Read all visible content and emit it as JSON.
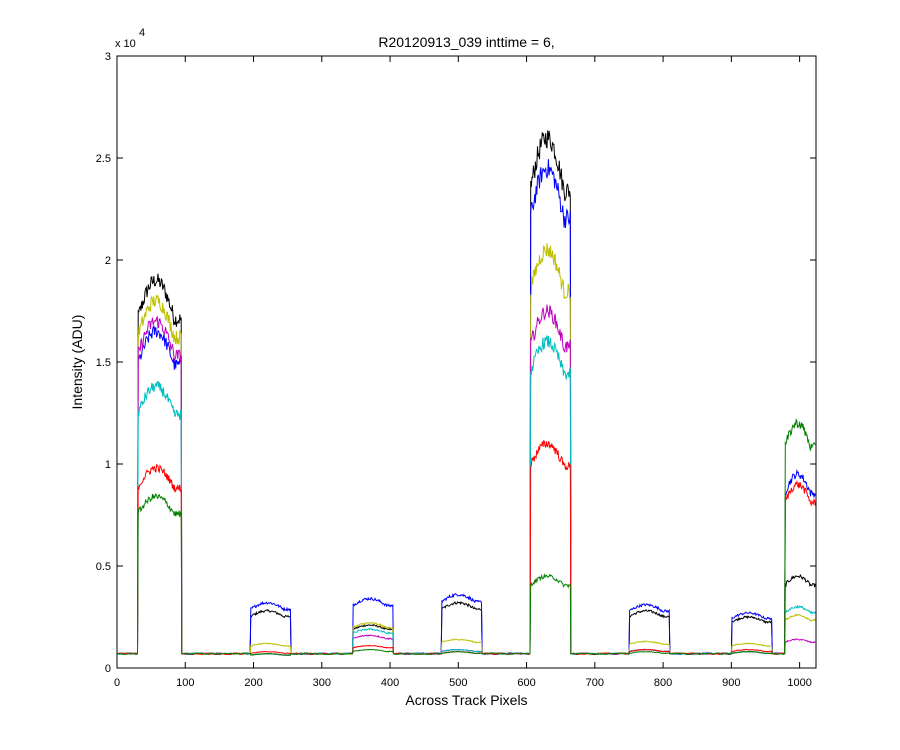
{
  "chart_data": {
    "type": "line",
    "title": "R20120913_039 inttime = 6,",
    "xlabel": "Across Track Pixels",
    "ylabel": "Intensity (ADU)",
    "y_exponent_label": "x 10",
    "y_exponent_power": "4",
    "xlim": [
      0,
      1024
    ],
    "ylim": [
      0,
      30000
    ],
    "grid": false,
    "legend": "none",
    "x_ticks": [
      0,
      100,
      200,
      300,
      400,
      500,
      600,
      700,
      800,
      900,
      1000
    ],
    "x_tick_labels": [
      "0",
      "100",
      "200",
      "300",
      "400",
      "500",
      "600",
      "700",
      "800",
      "900",
      "1000"
    ],
    "y_ticks": [
      0,
      5000,
      10000,
      15000,
      20000,
      25000,
      30000
    ],
    "y_tick_labels": [
      "0",
      "0.5",
      "1",
      "1.5",
      "2",
      "2.5",
      "3"
    ],
    "baseline": 700,
    "segments": [
      {
        "x_start": 30,
        "x_end": 95
      },
      {
        "x_start": 195,
        "x_end": 255
      },
      {
        "x_start": 345,
        "x_end": 405
      },
      {
        "x_start": 475,
        "x_end": 535
      },
      {
        "x_start": 605,
        "x_end": 665
      },
      {
        "x_start": 750,
        "x_end": 810
      },
      {
        "x_start": 900,
        "x_end": 960
      },
      {
        "x_start": 978,
        "x_end": 1024
      }
    ],
    "series": [
      {
        "color": "#000000",
        "levels": [
          19000,
          2800,
          2100,
          3200,
          26000,
          2800,
          2500,
          4500
        ]
      },
      {
        "color": "#0000ff",
        "levels": [
          16500,
          3200,
          3400,
          3600,
          24500,
          3100,
          2700,
          9500
        ]
      },
      {
        "color": "#bfbf00",
        "levels": [
          18000,
          1200,
          2200,
          1400,
          20500,
          1300,
          1200,
          2600
        ]
      },
      {
        "color": "#bf00bf",
        "levels": [
          17000,
          700,
          1600,
          900,
          17500,
          900,
          800,
          1400
        ]
      },
      {
        "color": "#00bfbf",
        "levels": [
          13800,
          700,
          1900,
          900,
          16000,
          900,
          800,
          3000
        ]
      },
      {
        "color": "#ff0000",
        "levels": [
          9800,
          800,
          1100,
          800,
          11000,
          900,
          900,
          9000
        ]
      },
      {
        "color": "#008000",
        "levels": [
          8400,
          700,
          900,
          800,
          4500,
          800,
          800,
          12000
        ]
      }
    ]
  }
}
